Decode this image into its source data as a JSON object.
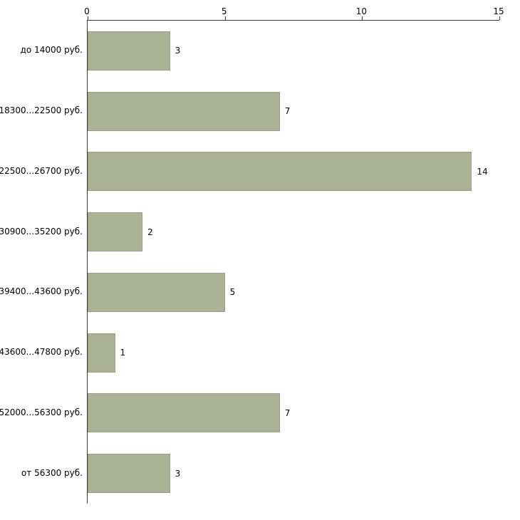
{
  "chart_data": {
    "type": "bar",
    "orientation": "horizontal",
    "title": "",
    "xlabel": "",
    "ylabel": "",
    "categories": [
      "до 14000 руб.",
      "18300...22500 руб.",
      "22500...26700 руб.",
      "30900...35200 руб.",
      "39400...43600 руб.",
      "43600...47800 руб.",
      "52000...56300 руб.",
      "от 56300 руб."
    ],
    "values": [
      3,
      7,
      14,
      2,
      5,
      1,
      7,
      3
    ],
    "xticks": [
      0,
      5,
      10,
      15
    ],
    "xlim": [
      0,
      15
    ],
    "grid": false,
    "legend": "none",
    "bar_color": "#acb296",
    "bar_border_color": "#969d82",
    "axis_color": "#3a3a3a",
    "background_color": "#ffffff",
    "text_color": "#000000"
  }
}
